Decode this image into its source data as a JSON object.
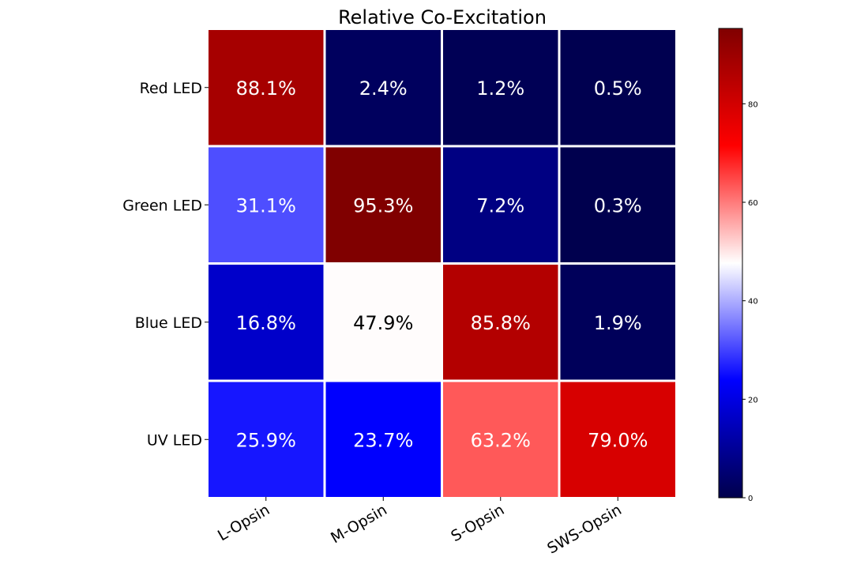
{
  "chart_data": {
    "type": "heatmap",
    "title": "Relative Co-Excitation",
    "x_categories": [
      "L-Opsin",
      "M-Opsin",
      "S-Opsin",
      "SWS-Opsin"
    ],
    "y_categories": [
      "Red LED",
      "Green LED",
      "Blue LED",
      "UV LED"
    ],
    "values": [
      [
        88.1,
        2.4,
        1.2,
        0.5
      ],
      [
        31.1,
        95.3,
        7.2,
        0.3
      ],
      [
        16.8,
        47.9,
        85.8,
        1.9
      ],
      [
        25.9,
        23.7,
        63.2,
        79.0
      ]
    ],
    "labels": [
      [
        "88.1%",
        "2.4%",
        "1.2%",
        "0.5%"
      ],
      [
        "31.1%",
        "95.3%",
        "7.2%",
        "0.3%"
      ],
      [
        "16.8%",
        "47.9%",
        "85.8%",
        "1.9%"
      ],
      [
        "25.9%",
        "23.7%",
        "63.2%",
        "79.0%"
      ]
    ],
    "colorbar": {
      "colormap": "seismic",
      "vmin": 0,
      "vmax": 95.3,
      "ticks": [
        0,
        20,
        40,
        60,
        80
      ],
      "tick_labels": [
        "0",
        "20",
        "40",
        "60",
        "80"
      ]
    },
    "xtick_rotation": "30 degrees",
    "grid": false,
    "legend": "colorbar right"
  }
}
